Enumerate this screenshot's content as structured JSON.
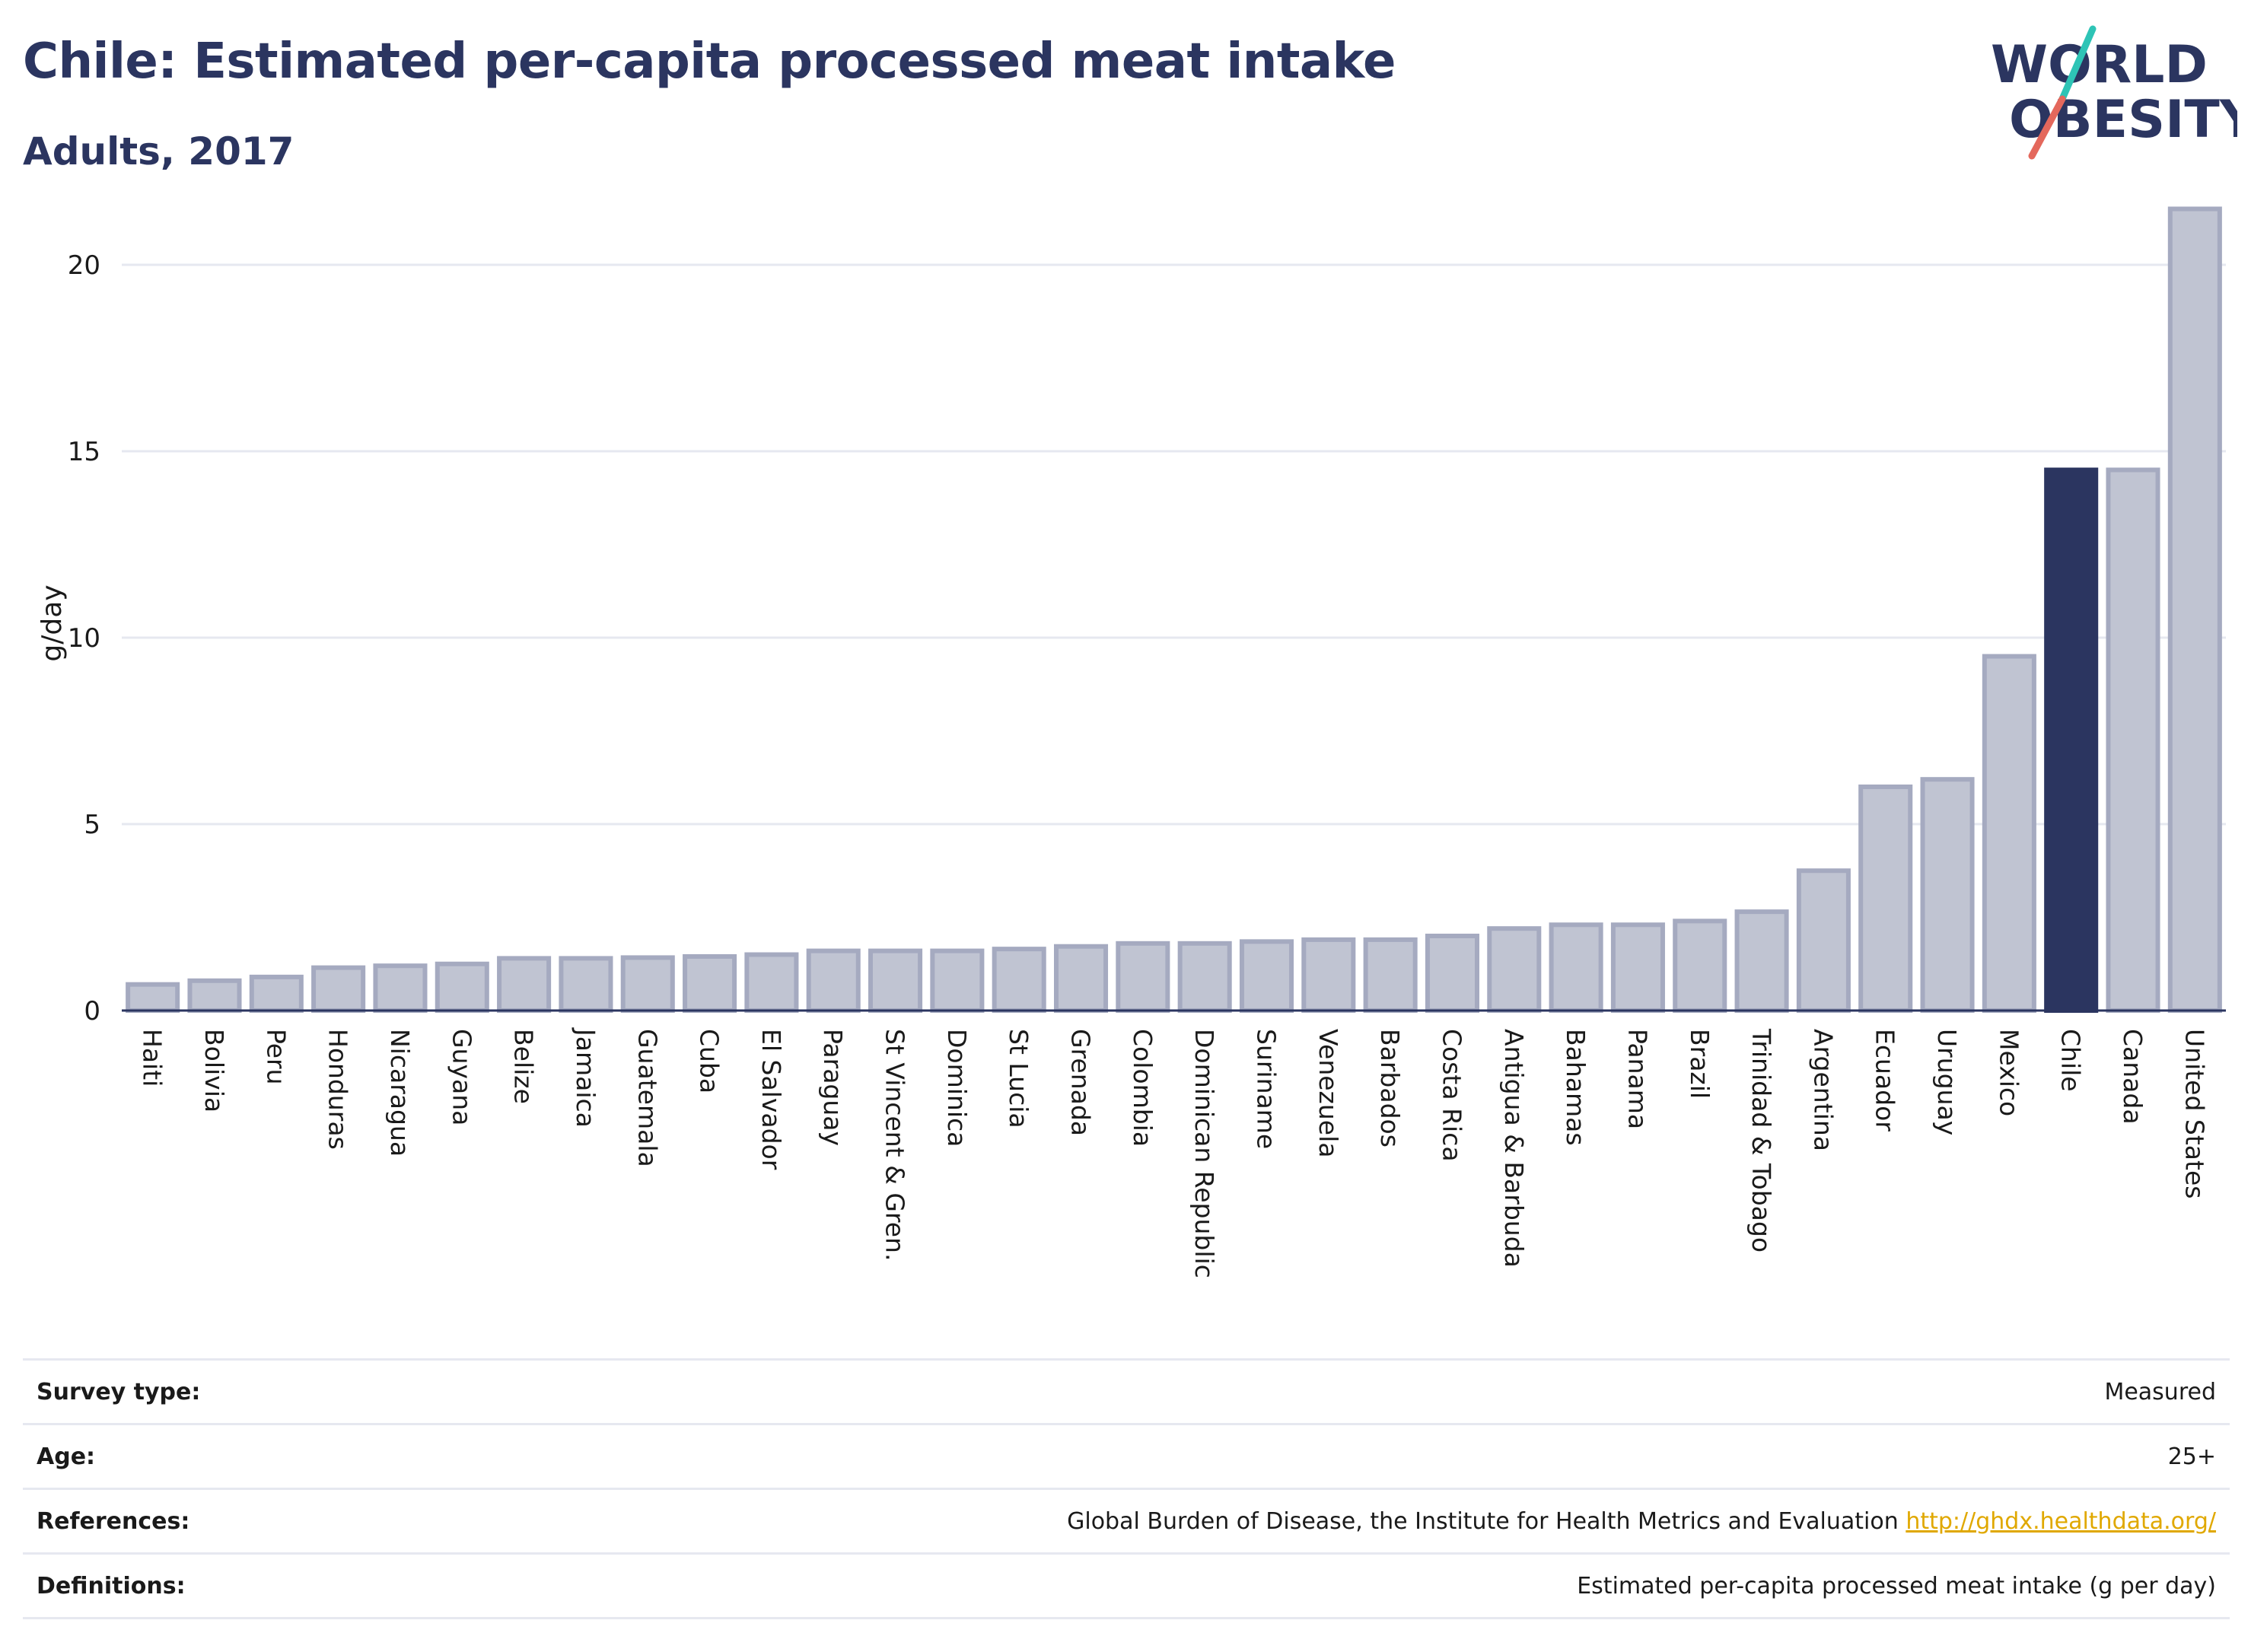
{
  "header": {
    "title": "Chile: Estimated per-capita processed meat intake",
    "subtitle": "Adults, 2017"
  },
  "logo": {
    "line1": "WORLD",
    "line2": "OBESITY",
    "brand_color": "#2b3560",
    "slash_color_top": "#2ec4b6",
    "slash_color_bottom": "#e4685c"
  },
  "chart_data": {
    "type": "bar",
    "ylabel": "g/day",
    "ylim": [
      0,
      22
    ],
    "yticks": [
      0,
      5,
      10,
      15,
      20
    ],
    "grid": true,
    "highlight": "Chile",
    "colors": {
      "bar_fill": "#c0c4d2",
      "bar_stroke": "#a5aac0",
      "highlight": "#2b3560"
    },
    "categories": [
      "Haiti",
      "Bolivia",
      "Peru",
      "Honduras",
      "Nicaragua",
      "Guyana",
      "Belize",
      "Jamaica",
      "Guatemala",
      "Cuba",
      "El Salvador",
      "Paraguay",
      "St Vincent & Gren.",
      "Dominica",
      "St Lucia",
      "Grenada",
      "Colombia",
      "Dominican Republic",
      "Suriname",
      "Venezuela",
      "Barbados",
      "Costa Rica",
      "Antigua & Barbuda",
      "Bahamas",
      "Panama",
      "Brazil",
      "Trinidad & Tobago",
      "Argentina",
      "Ecuador",
      "Uruguay",
      "Mexico",
      "Chile",
      "Canada",
      "United States"
    ],
    "values": [
      0.7,
      0.8,
      0.9,
      1.15,
      1.2,
      1.25,
      1.4,
      1.4,
      1.42,
      1.45,
      1.5,
      1.6,
      1.6,
      1.6,
      1.65,
      1.72,
      1.8,
      1.8,
      1.85,
      1.9,
      1.9,
      2.0,
      2.2,
      2.3,
      2.3,
      2.4,
      2.65,
      3.75,
      6.0,
      6.2,
      9.5,
      14.5,
      14.5,
      21.5
    ]
  },
  "info": {
    "rows": [
      {
        "label": "Survey type:",
        "value": "Measured"
      },
      {
        "label": "Age:",
        "value": "25+"
      },
      {
        "label": "References:",
        "value": "Global Burden of Disease, the Institute for Health Metrics and Evaluation",
        "link": "http://ghdx.healthdata.org/"
      },
      {
        "label": "Definitions:",
        "value": "Estimated per-capita processed meat intake (g per day)"
      }
    ]
  }
}
